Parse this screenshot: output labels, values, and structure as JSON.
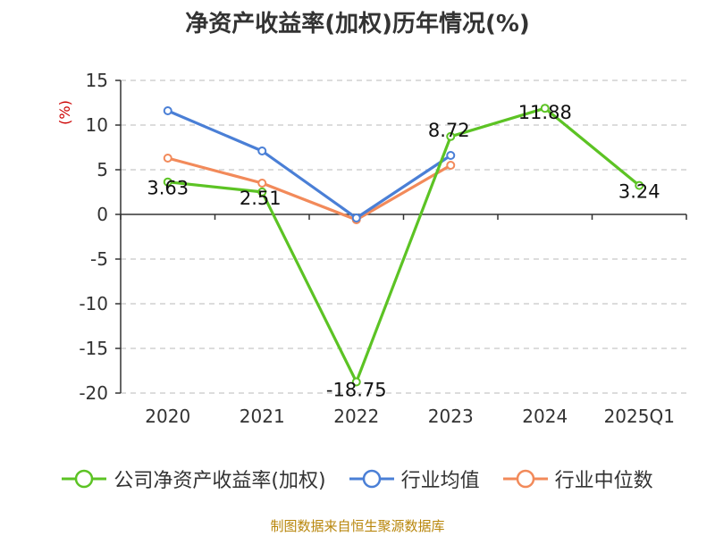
{
  "source_text": "制图数据来自恒生聚源数据库",
  "colors": {
    "series_1": "#5cc324",
    "series_2": "#4a7fd6",
    "series_3": "#f28a5a",
    "grid": "#c8c8c8",
    "axis": "#333333",
    "unit": "#cc0000",
    "source": "#b8860b"
  },
  "chart_data": {
    "type": "line",
    "title": "净资产收益率(加权)历年情况(%)",
    "ylabel": "(%)",
    "ylim": [
      -20,
      15
    ],
    "yticks": [
      15,
      10,
      5,
      0,
      -5,
      -10,
      -15,
      -20
    ],
    "grid": true,
    "legend_position": "bottom",
    "categories": [
      "2020",
      "2021",
      "2022",
      "2023",
      "2024",
      "2025Q1"
    ],
    "series": [
      {
        "name": "公司净资产收益率(加权)",
        "values": [
          3.63,
          2.51,
          -18.75,
          8.72,
          11.88,
          3.24
        ],
        "data_labels": [
          "3.63",
          "2.51",
          "-18.75",
          "8.72",
          "11.88",
          "3.24"
        ]
      },
      {
        "name": "行业均值",
        "values": [
          11.6,
          7.1,
          -0.4,
          6.6,
          null,
          null
        ]
      },
      {
        "name": "行业中位数",
        "values": [
          6.3,
          3.5,
          -0.6,
          5.5,
          null,
          null
        ]
      }
    ]
  }
}
